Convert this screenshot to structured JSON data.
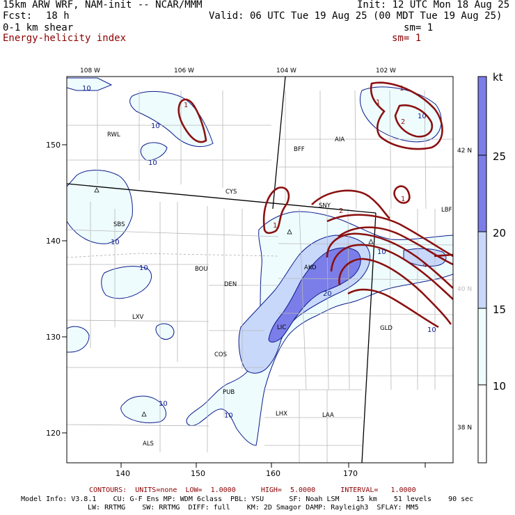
{
  "header": {
    "model": "15km ARW WRF, NAM-init -- NCAR/MMM",
    "init": "Init: 12 UTC Mon 18 Aug 25",
    "fcst_label": "Fcst:",
    "fcst_value": "18 h",
    "valid": "Valid: 06 UTC Tue 19 Aug 25 (00 MDT Tue 19 Aug 25)",
    "field1": "0-1 km shear",
    "sm1": "sm= 1",
    "field2": "Energy-helicity index",
    "sm2": "sm= 1"
  },
  "map": {
    "lon_labels_top": [
      "108 W",
      "106 W",
      "104 W",
      "102 W"
    ],
    "lat_labels_right": [
      "42 N",
      "40 N",
      "38 N"
    ],
    "x_ticks": [
      "140",
      "150",
      "160",
      "170"
    ],
    "y_ticks": [
      "150",
      "140",
      "130",
      "120"
    ],
    "stations": [
      "RWL",
      "BFF",
      "AIA",
      "CYS",
      "SNY",
      "SBS",
      "LBF",
      "BOU",
      "AKO",
      "DEN",
      "LXV",
      "GLD",
      "LIC",
      "COS",
      "PUB",
      "LHX",
      "LAA",
      "ALS"
    ],
    "shear_contour_labels": [
      "10",
      "10",
      "10",
      "10",
      "10",
      "10",
      "10",
      "10",
      "10",
      "10",
      "20"
    ],
    "ehi_contour_labels": [
      "1",
      "1",
      "1",
      "2",
      "1",
      "1",
      "2",
      "4"
    ]
  },
  "colorbar": {
    "unit": "kt",
    "ticks": [
      "25",
      "20",
      "15",
      "10"
    ],
    "colors": [
      "#ffffff",
      "#eefcfe",
      "#c8d8fa",
      "#7b7ee8"
    ]
  },
  "footer": {
    "contours": "CONTOURS:  UNITS=none  LOW=  1.0000      HIGH=  5.0000      INTERVAL=   1.0000",
    "model_info_1": "Model Info: V3.8.1    CU: G-F Ens MP: WDM 6class  PBL: YSU      SF: Noah LSM    15 km    51 levels    90 sec",
    "model_info_2": "LW: RRTMG    SW: RRTMG  DIFF: full    KM: 2D Smagor DAMP: Rayleigh3  SFLAY: MM5"
  }
}
